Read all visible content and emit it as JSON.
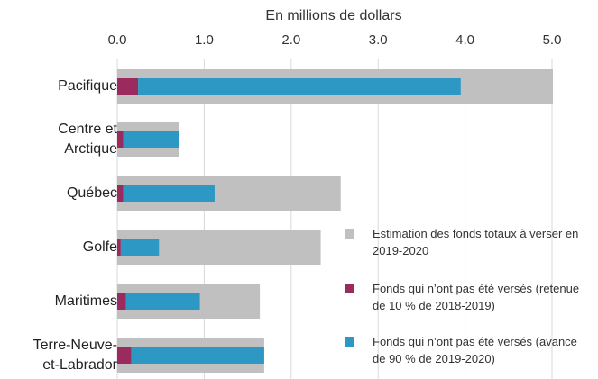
{
  "chart_data": {
    "type": "bar",
    "orientation": "horizontal",
    "stacked": true,
    "xlabel": "En millions de dollars",
    "categories": [
      "Pacifique",
      "Centre et Arctique",
      "Québec",
      "Golfe",
      "Maritimes",
      "Terre-Neuve-et-Labrador"
    ],
    "total_series": {
      "name": "Estimation des fonds totaux à verser en 2019-2020",
      "color": "#c0c0c0",
      "values": [
        5.01,
        0.71,
        2.57,
        2.34,
        1.64,
        1.69
      ]
    },
    "series": [
      {
        "name": "Fonds qui n’ont pas été versés (retenue de 10 % de 2018-2019)",
        "color": "#9b2a5f",
        "values": [
          0.24,
          0.07,
          0.07,
          0.04,
          0.1,
          0.16
        ]
      },
      {
        "name": "Fonds qui n’ont pas été versés (avance de 90 % de 2019-2020)",
        "color": "#2e98c4",
        "values": [
          3.71,
          0.64,
          1.05,
          0.44,
          0.85,
          1.53
        ]
      }
    ],
    "xlim": [
      0,
      5
    ],
    "xticks": [
      {
        "value": 0,
        "label": "0.0"
      },
      {
        "value": 1,
        "label": "1.0"
      },
      {
        "value": 2,
        "label": "2.0"
      },
      {
        "value": 3,
        "label": "3.0"
      },
      {
        "value": 4,
        "label": "4.0"
      },
      {
        "value": 5,
        "label": "5.0"
      }
    ],
    "grid": true
  }
}
